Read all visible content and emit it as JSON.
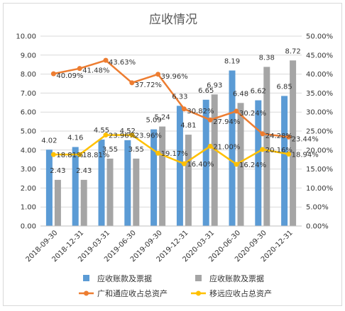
{
  "chart_data": {
    "type": "bar",
    "title": "应收情况",
    "categories": [
      "2018-09-30",
      "2018-12-31",
      "2019-03-31",
      "2019-06-30",
      "2019-09-30",
      "2019-12-31",
      "2020-03-31",
      "2020-06-30",
      "2020-09-30",
      "2020-12-31"
    ],
    "series": [
      {
        "name": "应收账款及票据",
        "type": "bar",
        "axis": "left",
        "color": "#5b9bd5",
        "values": [
          4.02,
          4.16,
          4.55,
          4.52,
          5.09,
          6.33,
          6.65,
          8.19,
          6.62,
          6.85
        ]
      },
      {
        "name": "应收账款及票据",
        "type": "bar",
        "axis": "left",
        "color": "#a5a5a5",
        "values": [
          2.43,
          2.43,
          3.55,
          3.55,
          5.24,
          4.81,
          6.93,
          6.48,
          8.38,
          8.72
        ]
      },
      {
        "name": "广和通应收占总资产",
        "type": "line",
        "axis": "right",
        "color": "#ed7d31",
        "values": [
          40.09,
          41.48,
          43.63,
          37.72,
          39.96,
          30.82,
          27.94,
          30.24,
          24.28,
          23.44
        ]
      },
      {
        "name": "移远应收占总资产",
        "type": "line",
        "axis": "right",
        "color": "#ffc000",
        "values": [
          18.81,
          18.81,
          23.96,
          23.96,
          19.17,
          16.4,
          21.0,
          16.24,
          20.16,
          18.94
        ]
      }
    ],
    "ylim": [
      0,
      10
    ],
    "yticks": [
      "0.00",
      "1.00",
      "2.00",
      "3.00",
      "4.00",
      "5.00",
      "6.00",
      "7.00",
      "8.00",
      "9.00",
      "10.00"
    ],
    "y2lim": [
      0,
      50
    ],
    "y2ticks": [
      "0.00%",
      "5.00%",
      "10.00%",
      "15.00%",
      "20.00%",
      "25.00%",
      "30.00%",
      "35.00%",
      "40.00%",
      "45.00%",
      "50.00%"
    ],
    "grid": true,
    "legend": "bottom"
  }
}
